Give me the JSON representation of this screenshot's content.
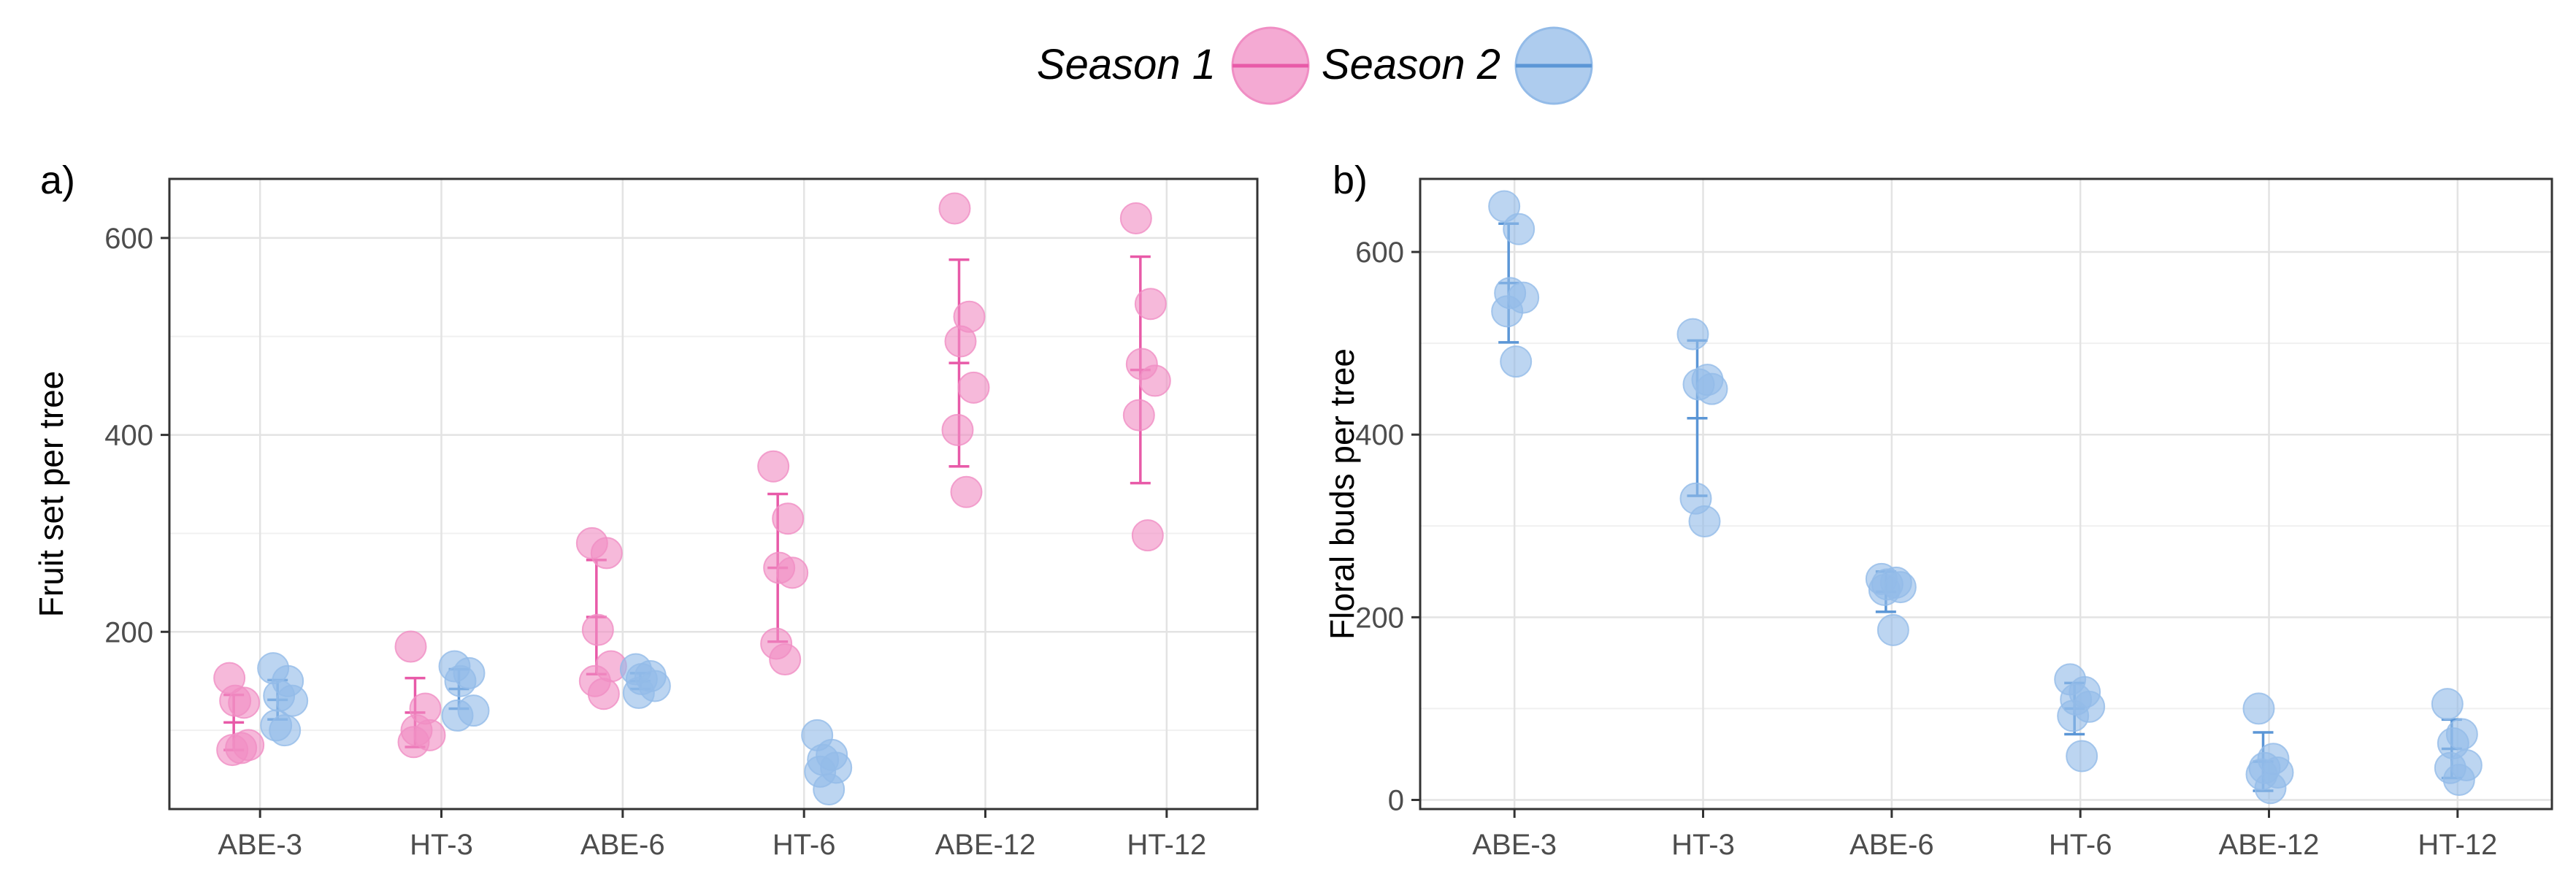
{
  "legend": {
    "items": [
      {
        "label": "Season 1",
        "color": "#e85aa8",
        "fill": "#f08ec4"
      },
      {
        "label": "Season 2",
        "color": "#5b96d6",
        "fill": "#93bbe8"
      }
    ]
  },
  "chart_data": [
    {
      "panel_label": "a)",
      "type": "scatter",
      "title": "",
      "xlabel": "",
      "ylabel": "Fruit set per tree",
      "categories": [
        "ABE-3",
        "HT-3",
        "ABE-6",
        "HT-6",
        "ABE-12",
        "HT-12"
      ],
      "ylim": [
        20,
        660
      ],
      "yticks": [
        200,
        400,
        600
      ],
      "grid": true,
      "series": [
        {
          "name": "Season 1",
          "points": [
            [
              153,
              128,
              130,
              85,
              80,
              82
            ],
            [
              185,
              122,
              100,
              95,
              88
            ],
            [
              290,
              280,
              202,
              165,
              150,
              137
            ],
            [
              368,
              315,
              265,
              260,
              188,
              172
            ],
            [
              630,
              520,
              495,
              448,
              405,
              342
            ],
            [
              620,
              533,
              472,
              455,
              420,
              298
            ]
          ],
          "mean": [
            108,
            118,
            215,
            265,
            473,
            466
          ],
          "sd": [
            28,
            35,
            58,
            75,
            105,
            115
          ]
        },
        {
          "name": "Season 2",
          "points": [
            [
              163,
              150,
              135,
              130,
              105,
              100
            ],
            [
              165,
              158,
              150,
              120,
              115
            ],
            [
              162,
              155,
              152,
              145,
              138
            ],
            [
              95,
              75,
              70,
              62,
              58,
              40
            ],
            [],
            []
          ],
          "mean": [
            131,
            142,
            150,
            null,
            null,
            null
          ],
          "sd": [
            20,
            20,
            8,
            null,
            null,
            null
          ]
        }
      ]
    },
    {
      "panel_label": "b)",
      "type": "scatter",
      "title": "",
      "xlabel": "",
      "ylabel": "Floral buds per tree",
      "categories": [
        "ABE-3",
        "HT-3",
        "ABE-6",
        "HT-6",
        "ABE-12",
        "HT-12"
      ],
      "ylim": [
        -10,
        680
      ],
      "yticks": [
        0,
        200,
        400,
        600
      ],
      "grid": true,
      "series": [
        {
          "name": "Season 2",
          "points": [
            [
              650,
              625,
              555,
              550,
              535,
              480
            ],
            [
              510,
              460,
              455,
              450,
              330,
              305
            ],
            [
              242,
              238,
              236,
              233,
              230,
              186
            ],
            [
              132,
              118,
              110,
              102,
              92,
              48
            ],
            [
              100,
              45,
              35,
              30,
              28,
              13
            ],
            [
              105,
              72,
              62,
              38,
              35,
              22
            ]
          ],
          "mean": [
            566,
            418,
            228,
            100,
            42,
            56
          ],
          "sd": [
            65,
            85,
            22,
            28,
            32,
            32
          ]
        }
      ]
    }
  ]
}
